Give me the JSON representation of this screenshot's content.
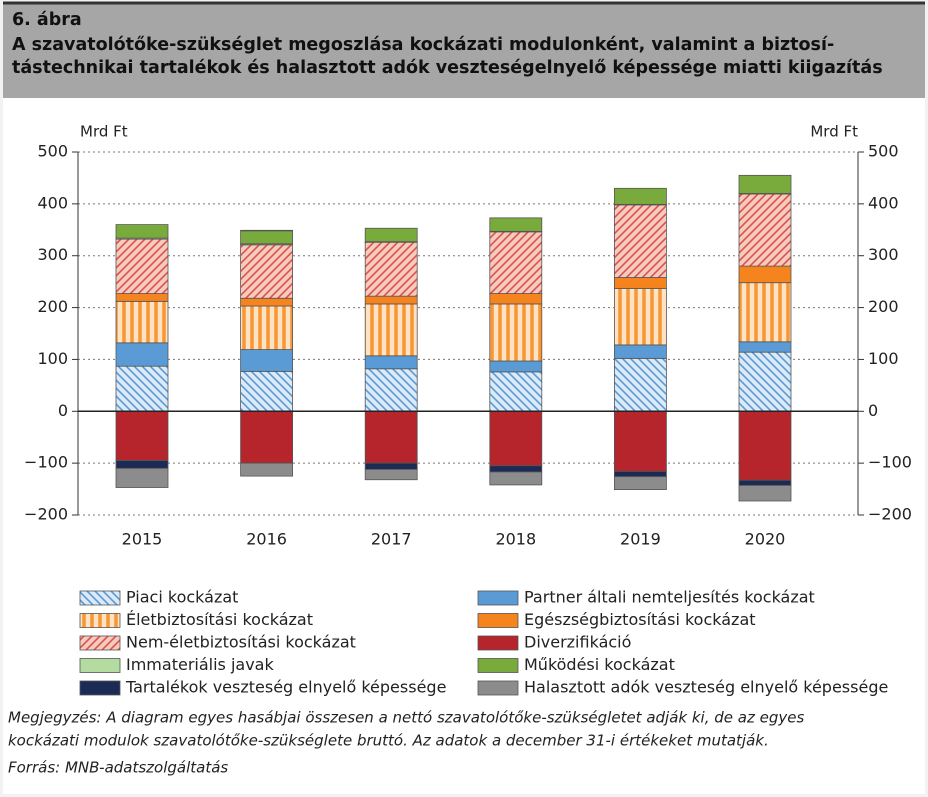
{
  "chart_data": {
    "type": "stacked_bar",
    "figure_label": "6. ábra",
    "title_lines": [
      "A szavatolótőke-szükséglet megoszlása kockázati modulonként, valamint a biztosí-",
      "tástechnikai tartalékok és halasztott adók veszteségelnyelő képessége miatti kiigazítás"
    ],
    "y_label": "Mrd Ft",
    "y2_label": "Mrd Ft",
    "categories": [
      "2015",
      "2016",
      "2017",
      "2018",
      "2019",
      "2020"
    ],
    "series": [
      {
        "name": "Piaci kockázat",
        "color": "#dce9f7",
        "hatch": {
          "style": "diagonal-down",
          "color": "#5b9bd5"
        },
        "values": [
          87,
          77,
          82,
          76,
          102,
          114
        ]
      },
      {
        "name": "Partner általi nemteljesítés kockázat",
        "color": "#5b9bd5",
        "values": [
          45,
          42,
          25,
          21,
          26,
          20
        ]
      },
      {
        "name": "Életbiztosítási kockázat",
        "color": "#fde3c4",
        "hatch": {
          "style": "vertical",
          "color": "#f79633"
        },
        "values": [
          80,
          84,
          100,
          110,
          109,
          114
        ]
      },
      {
        "name": "Egészségbiztosítási kockázat",
        "color": "#f5841f",
        "values": [
          15,
          15,
          15,
          20,
          21,
          32
        ]
      },
      {
        "name": "Nem-életbiztosítási kockázat",
        "color": "#f6cbbd",
        "hatch": {
          "style": "diagonal-up",
          "color": "#d9534f"
        },
        "values": [
          105,
          103,
          104,
          119,
          140,
          139
        ]
      },
      {
        "name": "Diverzifikáció",
        "color": "#b5252b",
        "values": [
          -95,
          -100,
          -100,
          -105,
          -116,
          -133
        ]
      },
      {
        "name": "Immateriális javak",
        "color": "#b4dca0",
        "values": [
          2,
          2,
          1,
          1,
          1,
          1
        ]
      },
      {
        "name": "Működési kockázat",
        "color": "#78ab3c",
        "values": [
          26,
          25,
          26,
          26,
          31,
          35
        ]
      },
      {
        "name": "Tartalékok veszteség elnyelő képessége",
        "color": "#1c2b55",
        "values": [
          -15,
          1,
          -12,
          -12,
          -10,
          -10
        ]
      },
      {
        "name": "Halasztott adók veszteség elnyelő képessége",
        "color": "#8c8c8c",
        "values": [
          -37,
          -25,
          -20,
          -25,
          -25,
          -30
        ]
      }
    ],
    "ylim": [
      -200,
      500
    ],
    "yticks": [
      {
        "value": -200,
        "label": "−200"
      },
      {
        "value": -100,
        "label": "−100"
      },
      0,
      100,
      200,
      300,
      400,
      500
    ],
    "grid": true,
    "note_lines": [
      "Megjegyzés: A diagram egyes hasábjai összesen a nettó szavatolótőke-szükségletet adják ki, de az egyes",
      "kockázati modulok szavatolótőke-szükséglete bruttó. Az adatok a december 31-i értékeket mutatják."
    ],
    "source": "Forrás: MNB-adatszolgáltatás"
  }
}
